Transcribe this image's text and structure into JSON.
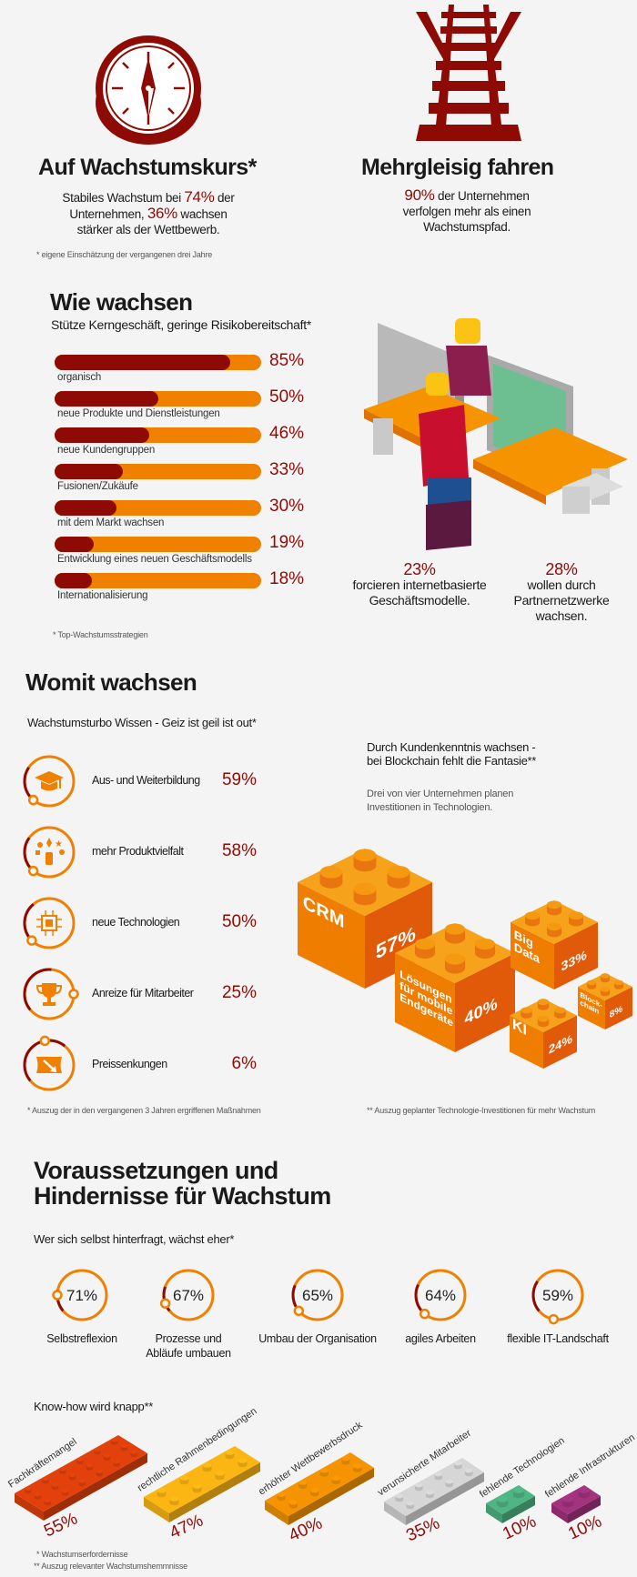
{
  "colors": {
    "dark_red": "#8e0b05",
    "orange": "#f08000",
    "background": "#f4f4f4"
  },
  "section1": {
    "left": {
      "icon": "compass-icon",
      "title": "Auf Wachstumskurs*",
      "text_parts": [
        "Stabiles Wachstum bei ",
        "74%",
        " der Unternehmen, ",
        "36%",
        " wachsen stärker als der Wettbewerb."
      ],
      "footnote": "* eigene Einschätzung der vergangenen drei Jahre"
    },
    "right": {
      "icon": "railway-tracks-icon",
      "title": "Mehrgleisig fahren",
      "text_parts": [
        "90%",
        " der Unternehmen verfolgen mehr als einen Wachstumspfad."
      ]
    }
  },
  "wie_wachsen": {
    "title": "Wie wachsen",
    "subtitle": "Stütze Kerngeschäft, geringe Risikobereitschaft*",
    "bars": [
      {
        "label": "organisch",
        "value": 85,
        "pct": "85%"
      },
      {
        "label": "neue Produkte und Dienstleistungen",
        "value": 50,
        "pct": "50%"
      },
      {
        "label": "neue Kundengruppen",
        "value": 46,
        "pct": "46%"
      },
      {
        "label": "Fusionen/Zukäufe",
        "value": 33,
        "pct": "33%"
      },
      {
        "label": "mit dem Markt wachsen",
        "value": 30,
        "pct": "30%"
      },
      {
        "label": "Entwicklung eines neuen Geschäftsmodells",
        "value": 19,
        "pct": "19%"
      },
      {
        "label": "Internationalisierung",
        "value": 18,
        "pct": "18%"
      }
    ],
    "footnote": "* Top-Wachstumsstrategien",
    "stats": [
      {
        "pct": "23%",
        "text": "forcieren internetbasierte Geschäftsmodelle."
      },
      {
        "pct": "28%",
        "text": "wollen durch Partnernetzwerke wachsen."
      }
    ]
  },
  "womit_wachsen": {
    "title": "Womit wachsen",
    "subtitle": "Wachstumsturbo Wissen - Geiz ist geil ist out*",
    "items": [
      {
        "icon": "graduation-cap-icon",
        "label": "Aus- und Weiterbildung",
        "pct": "59%",
        "value": 59
      },
      {
        "icon": "product-variety-icon",
        "label": "mehr Produktvielfalt",
        "pct": "58%",
        "value": 58
      },
      {
        "icon": "chip-icon",
        "label": "neue Technologien",
        "pct": "50%",
        "value": 50
      },
      {
        "icon": "trophy-icon",
        "label": "Anreize für Mitarbeiter",
        "pct": "25%",
        "value": 25
      },
      {
        "icon": "price-drop-icon",
        "label": "Preissenkungen",
        "pct": "6%",
        "value": 6
      }
    ],
    "footnote": "* Auszug der in den vergangenen 3 Jahren ergriffenen Maßnahmen",
    "tech": {
      "heading_lines": [
        "Durch Kundenkenntnis wachsen -",
        "bei Blockchain fehlt die Fantasie**"
      ],
      "text_lines": [
        "Drei von vier Unternehmen planen",
        "Investitionen in Technologien."
      ],
      "bricks": [
        {
          "label": [
            "CRM"
          ],
          "pct": "57%",
          "value": 57
        },
        {
          "label": [
            "Lösungen",
            "für mobile",
            "Endgeräte"
          ],
          "pct": "40%",
          "value": 40
        },
        {
          "label": [
            "Big",
            "Data"
          ],
          "pct": "33%",
          "value": 33
        },
        {
          "label": [
            "KI"
          ],
          "pct": "24%",
          "value": 24
        },
        {
          "label": [
            "Block-",
            "chain"
          ],
          "pct": "8%",
          "value": 8
        }
      ],
      "footnote": "** Auszug geplanter Technologie-Investitionen für mehr Wachstum"
    }
  },
  "voraussetzungen": {
    "title_lines": [
      "Voraussetzungen und",
      "Hindernisse für Wachstum"
    ],
    "subtitle": "Wer sich selbst hinterfragt, wächst eher*",
    "circles": [
      {
        "pct": "71%",
        "value": 71,
        "label": [
          "Selbstreflexion"
        ]
      },
      {
        "pct": "67%",
        "value": 67,
        "label": [
          "Prozesse und",
          "Abläufe umbauen"
        ]
      },
      {
        "pct": "65%",
        "value": 65,
        "label": [
          "Umbau der Organisation"
        ]
      },
      {
        "pct": "64%",
        "value": 64,
        "label": [
          "agiles Arbeiten"
        ]
      },
      {
        "pct": "59%",
        "value": 59,
        "label": [
          "flexible IT-Landschaft"
        ]
      }
    ],
    "knowhow_title": "Know-how wird knapp**",
    "obstacles": [
      {
        "label": "Fachkräftemangel",
        "pct": "55%",
        "value": 55,
        "color": "#e2410c"
      },
      {
        "label": "rechtliche Rahmenbedingungen",
        "pct": "47%",
        "value": 47,
        "color": "#fbb614"
      },
      {
        "label": "erhöhter Wettbewerbsdruck",
        "pct": "40%",
        "value": 40,
        "color": "#f59400"
      },
      {
        "label": "verunsicherte Mitarbeiter",
        "pct": "35%",
        "value": 35,
        "color": "#d6d6d6"
      },
      {
        "label": "fehlende Technologien",
        "pct": "10%",
        "value": 10,
        "color": "#4fb584"
      },
      {
        "label": "fehlende Infrastrukturen",
        "pct": "10%",
        "value": 10,
        "color": "#a3337f"
      }
    ],
    "footnotes": [
      "* Wachstumserfordernisse",
      "** Auszug relevanter Wachstumshemmnisse"
    ]
  }
}
